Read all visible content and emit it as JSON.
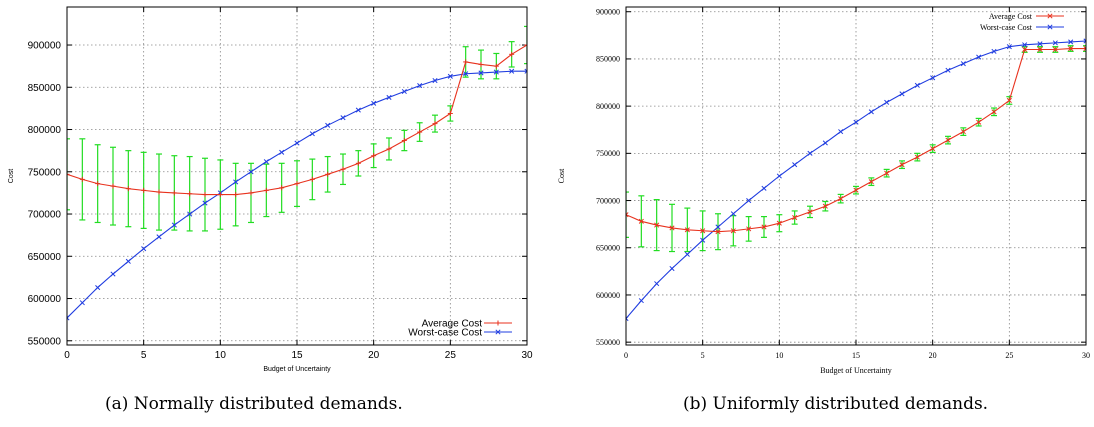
{
  "figures": [
    {
      "caption": "(a)  Normally distributed demands.",
      "style": "sans",
      "error_color": "#22dd22"
    },
    {
      "caption": "(b)  Uniformly distributed demands.",
      "style": "serif",
      "error_color": "#22dd22"
    }
  ],
  "colors": {
    "average": "#e8321e",
    "worst": "#1f3ce0",
    "errorbar": "#22dd22",
    "grid": "#888888"
  },
  "chart_data": [
    {
      "type": "line",
      "title": "",
      "xlabel": "Budget of Uncertainty",
      "ylabel": "Cost",
      "xlim": [
        0,
        30
      ],
      "ylim": [
        545000,
        945000
      ],
      "xticks": [
        0,
        5,
        10,
        15,
        20,
        25,
        30
      ],
      "yticks": [
        550000,
        600000,
        650000,
        700000,
        750000,
        800000,
        850000,
        900000
      ],
      "grid": true,
      "legend_position": "bottom-right",
      "x": [
        0,
        1,
        2,
        3,
        4,
        5,
        6,
        7,
        8,
        9,
        10,
        11,
        12,
        13,
        14,
        15,
        16,
        17,
        18,
        19,
        20,
        21,
        22,
        23,
        24,
        25,
        26,
        27,
        28,
        29,
        30
      ],
      "series": [
        {
          "name": "Average Cost",
          "color": "#e8321e",
          "marker": "+",
          "values": [
            747000,
            741000,
            736000,
            733000,
            730000,
            728000,
            726000,
            725000,
            724000,
            723000,
            723000,
            723000,
            725000,
            728000,
            731000,
            736000,
            741000,
            747000,
            753000,
            760000,
            769000,
            777000,
            787000,
            797000,
            807000,
            819000,
            880000,
            877000,
            875000,
            889000,
            900000
          ],
          "error": [
            42000,
            48000,
            46000,
            46000,
            45000,
            45000,
            45000,
            44000,
            44000,
            43000,
            41000,
            37000,
            35000,
            31000,
            29000,
            27000,
            24000,
            21000,
            18000,
            15000,
            14000,
            13000,
            12000,
            11000,
            10000,
            9000,
            18000,
            17000,
            15000,
            15000,
            22000
          ]
        },
        {
          "name": "Worst-case Cost",
          "color": "#1f3ce0",
          "marker": "x",
          "values": [
            577000,
            595000,
            613000,
            629000,
            644000,
            659000,
            673000,
            687000,
            700000,
            713000,
            725000,
            738000,
            750000,
            762000,
            773000,
            784000,
            795000,
            805000,
            814000,
            823000,
            831000,
            838000,
            845000,
            852000,
            858000,
            863000,
            866000,
            867000,
            868000,
            869000,
            869000
          ]
        }
      ]
    },
    {
      "type": "line",
      "title": "",
      "xlabel": "Budget of Uncertainty",
      "ylabel": "Cost",
      "xlim": [
        0,
        30
      ],
      "ylim": [
        547000,
        905000
      ],
      "xticks": [
        0,
        5,
        10,
        15,
        20,
        25,
        30
      ],
      "yticks": [
        550000,
        600000,
        650000,
        700000,
        750000,
        800000,
        850000,
        900000
      ],
      "grid": true,
      "legend_position": "top-right",
      "x": [
        0,
        1,
        2,
        3,
        4,
        5,
        6,
        7,
        8,
        9,
        10,
        11,
        12,
        13,
        14,
        15,
        16,
        17,
        18,
        19,
        20,
        21,
        22,
        23,
        24,
        25,
        26,
        27,
        28,
        29,
        30
      ],
      "series": [
        {
          "name": "Average Cost",
          "color": "#e8321e",
          "marker": "x",
          "values": [
            685000,
            678000,
            674000,
            671000,
            669000,
            668000,
            667000,
            668000,
            670000,
            672000,
            676000,
            682000,
            688000,
            694000,
            702000,
            711000,
            720000,
            729000,
            738000,
            746000,
            755000,
            764000,
            773000,
            783000,
            794000,
            806000,
            860000,
            860000,
            860000,
            861000,
            861000
          ],
          "error": [
            24000,
            27000,
            27000,
            25000,
            23000,
            21000,
            19000,
            16000,
            13000,
            11000,
            9000,
            7000,
            6000,
            5000,
            4500,
            4000,
            4000,
            4000,
            4000,
            4000,
            4000,
            4000,
            4000,
            4000,
            4000,
            4000,
            3000,
            3000,
            3000,
            3000,
            3000
          ]
        },
        {
          "name": "Worst-case Cost",
          "color": "#1f3ce0",
          "marker": "x",
          "values": [
            575000,
            594000,
            612000,
            628000,
            643000,
            658000,
            672000,
            686000,
            700000,
            713000,
            726000,
            738000,
            750000,
            761000,
            773000,
            783000,
            794000,
            804000,
            813000,
            822000,
            830000,
            838000,
            845000,
            852000,
            858000,
            863000,
            865000,
            866000,
            867000,
            868000,
            869000
          ]
        }
      ]
    }
  ]
}
